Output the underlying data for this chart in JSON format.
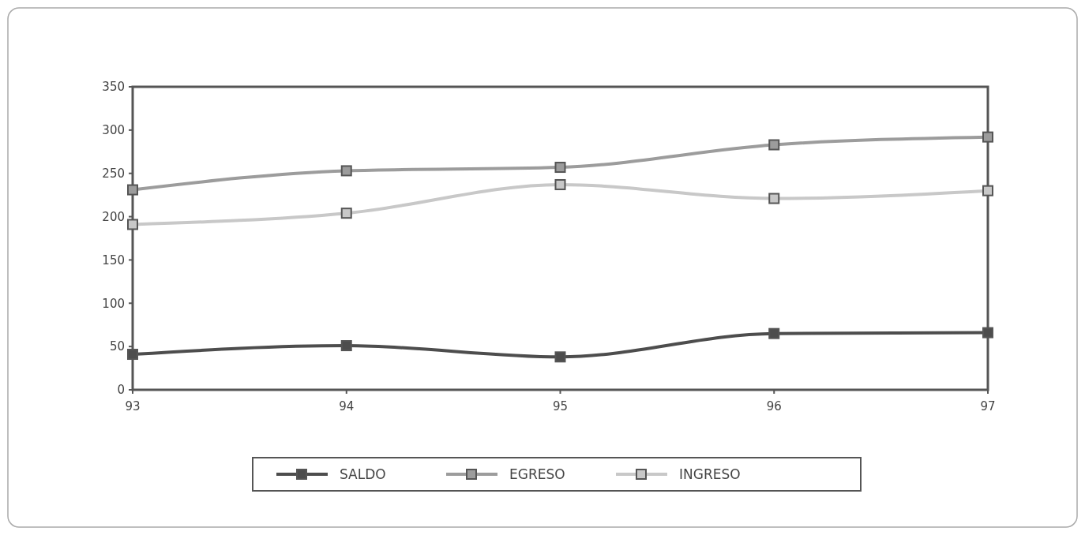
{
  "chart_data": {
    "type": "line",
    "categories": [
      "93",
      "94",
      "95",
      "96",
      "97"
    ],
    "series": [
      {
        "name": "SALDO",
        "color": "#4d4d4d",
        "values": [
          41,
          51,
          38,
          65,
          66
        ]
      },
      {
        "name": "EGRESO",
        "color": "#9c9c9c",
        "values": [
          231,
          253,
          257,
          283,
          292
        ]
      },
      {
        "name": "INGRESO",
        "color": "#c8c8c8",
        "values": [
          191,
          204,
          237,
          221,
          230
        ]
      }
    ],
    "ylim": [
      0,
      350
    ],
    "yticks": [
      0,
      50,
      100,
      150,
      200,
      250,
      300,
      350
    ],
    "grid": false,
    "legend": "bottom",
    "marker": "square",
    "line_style": "solid"
  }
}
